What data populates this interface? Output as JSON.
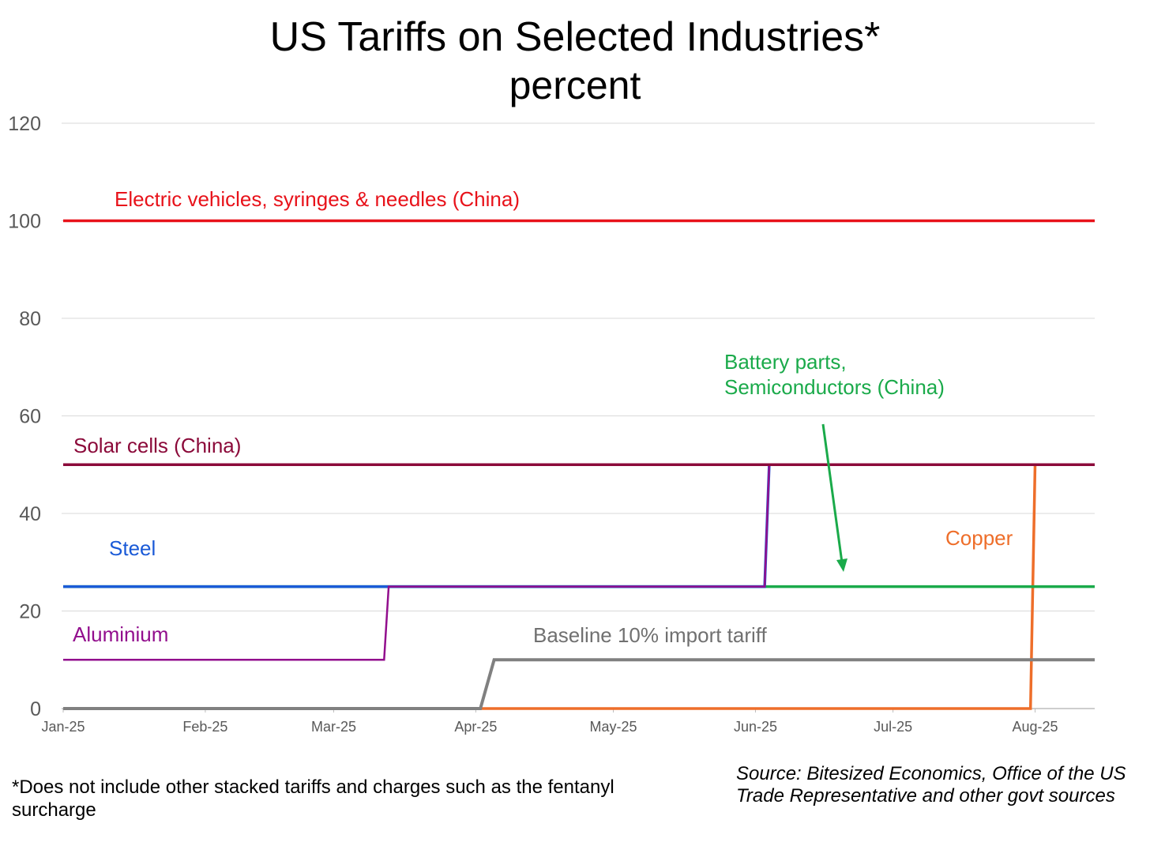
{
  "chart_data": {
    "type": "line",
    "title": "US Tariffs on Selected Industries*",
    "subtitle": "percent",
    "xlabel": "",
    "ylabel": "",
    "ylim": [
      0,
      120
    ],
    "yticks": [
      0,
      20,
      40,
      60,
      80,
      100,
      120
    ],
    "xticks": [
      "Jan-25",
      "Feb-25",
      "Mar-25",
      "Apr-25",
      "May-25",
      "Jun-25",
      "Jul-25",
      "Aug-25"
    ],
    "xrange": [
      "2025-01-01",
      "2025-08-14"
    ],
    "grid": true,
    "legend": "none",
    "series": [
      {
        "name": "Electric vehicles, syringes & needles  (China)",
        "color": "#e8121a",
        "points": [
          [
            "2025-01-01",
            100
          ],
          [
            "2025-08-14",
            100
          ]
        ]
      },
      {
        "name": "Solar cells (China)",
        "color": "#8b0a3a",
        "points": [
          [
            "2025-01-01",
            50
          ],
          [
            "2025-08-14",
            50
          ]
        ]
      },
      {
        "name": "Battery parts, Semiconductors (China)",
        "color": "#1aaa4a",
        "points": [
          [
            "2025-01-01",
            25
          ],
          [
            "2025-08-14",
            25
          ]
        ]
      },
      {
        "name": "Steel",
        "color": "#1a5ad7",
        "points": [
          [
            "2025-01-01",
            25
          ],
          [
            "2025-06-03",
            25
          ],
          [
            "2025-06-04",
            50
          ],
          [
            "2025-08-14",
            50
          ]
        ]
      },
      {
        "name": "Aluminium",
        "color": "#920e8d",
        "points": [
          [
            "2025-01-01",
            10
          ],
          [
            "2025-03-12",
            10
          ],
          [
            "2025-03-13",
            25
          ],
          [
            "2025-06-03",
            25
          ],
          [
            "2025-06-04",
            50
          ],
          [
            "2025-08-14",
            50
          ]
        ]
      },
      {
        "name": "Baseline 10% import tariff",
        "color": "#808080",
        "points": [
          [
            "2025-01-01",
            0
          ],
          [
            "2025-04-02",
            0
          ],
          [
            "2025-04-05",
            10
          ],
          [
            "2025-08-14",
            10
          ]
        ]
      },
      {
        "name": "Copper",
        "color": "#ee6e2a",
        "points": [
          [
            "2025-01-01",
            0
          ],
          [
            "2025-07-31",
            0
          ],
          [
            "2025-08-01",
            50
          ]
        ]
      }
    ],
    "annotations": [
      {
        "text": "Electric vehicles, syringes & needles  (China)",
        "color": "#e8121a"
      },
      {
        "text": "Solar cells (China)",
        "color": "#8b0a3a"
      },
      {
        "text": "Battery parts,",
        "color": "#1aaa4a"
      },
      {
        "text": "Semiconductors (China)",
        "color": "#1aaa4a"
      },
      {
        "text": "Steel",
        "color": "#1a5ad7"
      },
      {
        "text": "Aluminium",
        "color": "#920e8d"
      },
      {
        "text": "Baseline 10% import tariff",
        "color": "#707070"
      },
      {
        "text": "Copper",
        "color": "#ee6e2a"
      }
    ]
  },
  "footnote": "*Does not include other stacked tariffs and charges such as the fentanyl surcharge",
  "source": "Source: Bitesized Economics, Office of the US Trade Representative and other govt sources"
}
